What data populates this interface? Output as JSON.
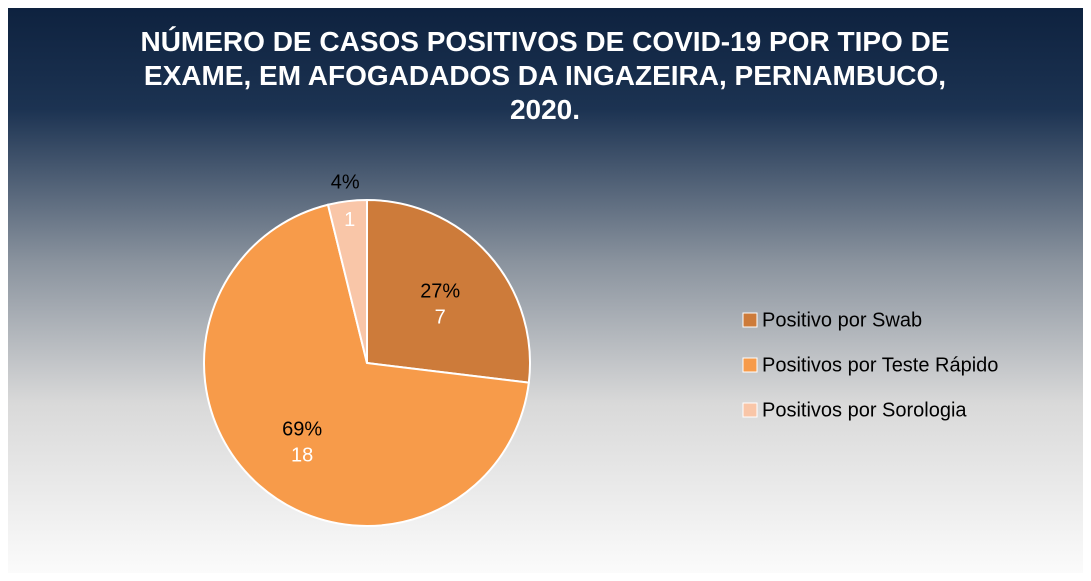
{
  "chart_data": {
    "type": "pie",
    "title": "NÚMERO DE CASOS POSITIVOS DE COVID-19 POR TIPO DE EXAME, EM AFOGADADOS DA INGAZEIRA, PERNAMBUCO, 2020.",
    "categories": [
      "Positivo por Swab",
      "Positivos por Teste Rápido",
      "Positivos por Sorologia"
    ],
    "values": [
      7,
      18,
      1
    ],
    "percentages": [
      27,
      69,
      4
    ],
    "percentage_labels": [
      "27%",
      "69%",
      "4%"
    ],
    "colors": [
      "#cd7b3a",
      "#f79b4a",
      "#f9c6a8"
    ],
    "legend": "right"
  }
}
